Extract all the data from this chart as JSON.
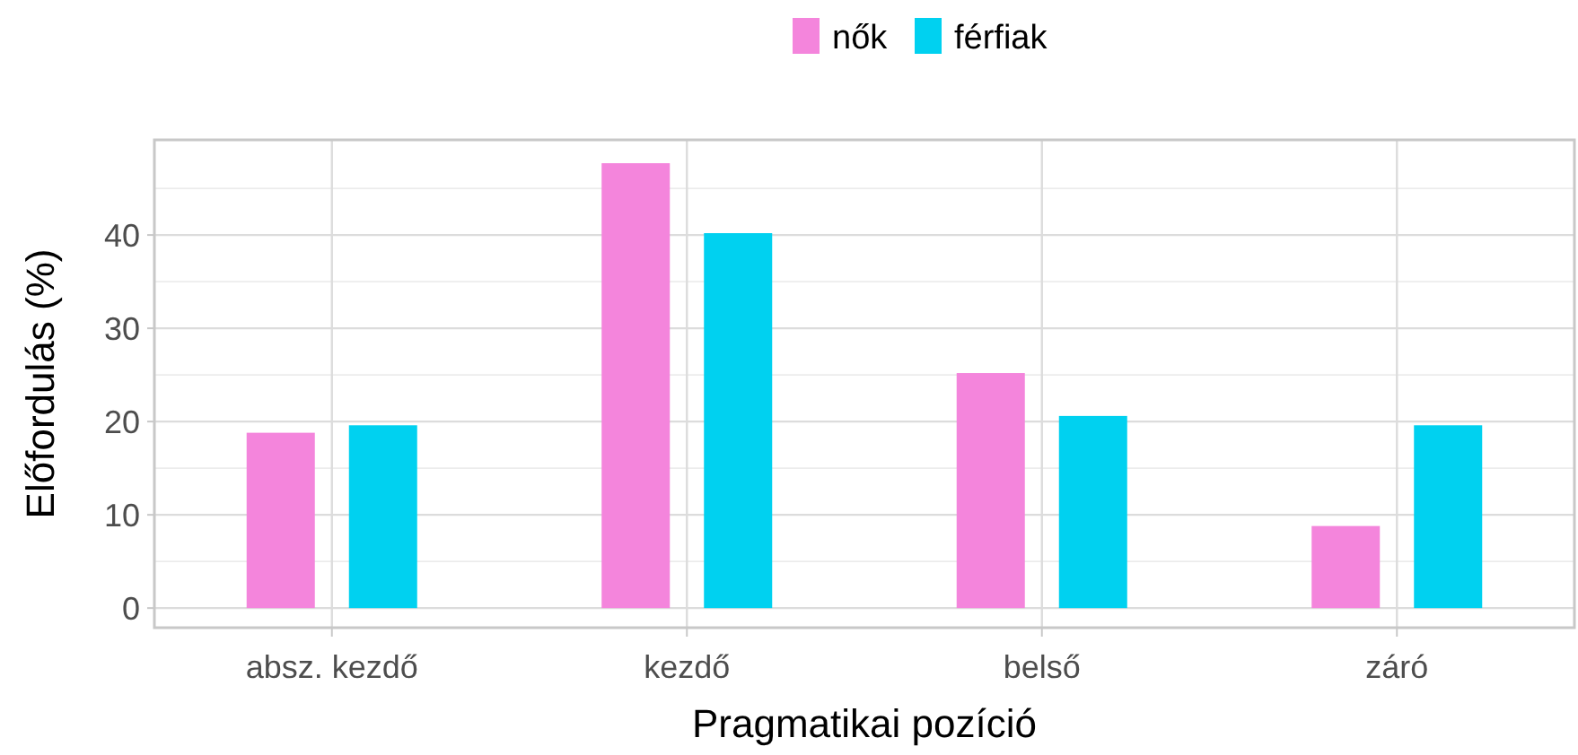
{
  "chart_data": {
    "type": "bar",
    "xlabel": "Pragmatikai pozíció",
    "ylabel": "Előfordulás (%)",
    "categories": [
      "absz. kezdő",
      "kezdő",
      "belső",
      "záró"
    ],
    "series": [
      {
        "name": "nők",
        "color": "#f485dc",
        "values": [
          18.8,
          47.7,
          25.2,
          8.8
        ]
      },
      {
        "name": "férfiak",
        "color": "#00d1f0",
        "values": [
          19.6,
          40.2,
          20.6,
          19.6
        ]
      }
    ],
    "ylim": [
      -2.1,
      50.2
    ],
    "yticks": [
      0,
      10,
      20,
      30,
      40
    ],
    "grid": true,
    "legend": "top"
  }
}
